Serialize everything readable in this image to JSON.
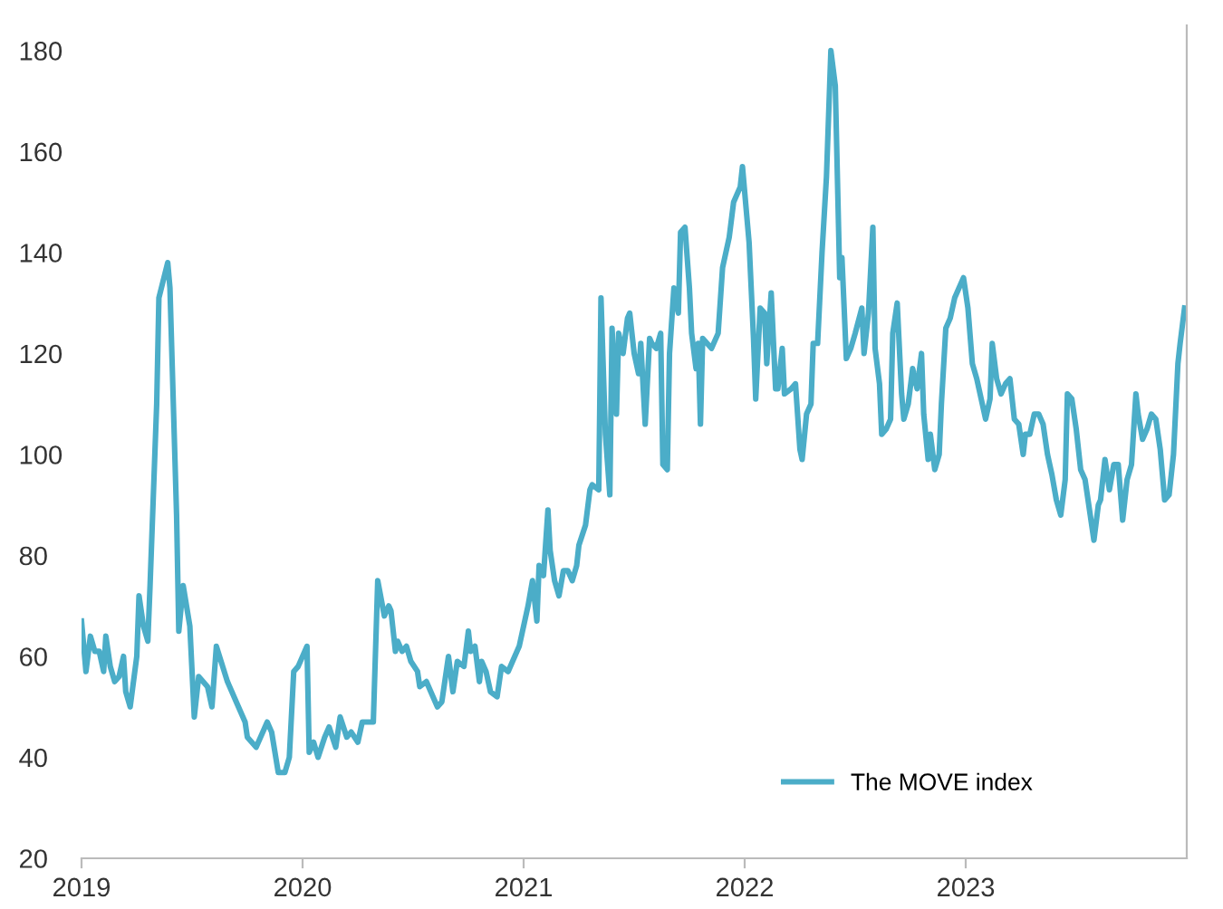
{
  "chart_data": {
    "type": "line",
    "xlim": [
      2019,
      2024
    ],
    "xticks": [
      2019,
      2020,
      2021,
      2022,
      2023
    ],
    "ylim": [
      20,
      185
    ],
    "yticks": [
      20,
      40,
      60,
      80,
      100,
      120,
      140,
      160,
      180
    ],
    "grid": false,
    "legend": "bottom right",
    "marker": "none",
    "line_style": "solid",
    "series": [
      {
        "name": "The MOVE index",
        "color": "#4badc8",
        "x": [
          2019.0,
          2019.02,
          2019.04,
          2019.06,
          2019.08,
          2019.1,
          2019.11,
          2019.13,
          2019.15,
          2019.17,
          2019.19,
          2019.2,
          2019.22,
          2019.25,
          2019.26,
          2019.28,
          2019.3,
          2019.31,
          2019.34,
          2019.35,
          2019.39,
          2019.4,
          2019.43,
          2019.44,
          2019.46,
          2019.49,
          2019.51,
          2019.53,
          2019.57,
          2019.59,
          2019.61,
          2019.66,
          2019.7,
          2019.74,
          2019.75,
          2019.79,
          2019.84,
          2019.86,
          2019.89,
          2019.92,
          2019.94,
          2019.96,
          2019.98,
          2020.02,
          2020.03,
          2020.05,
          2020.07,
          2020.1,
          2020.12,
          2020.15,
          2020.17,
          2020.2,
          2020.22,
          2020.25,
          2020.27,
          2020.3,
          2020.32,
          2020.34,
          2020.37,
          2020.39,
          2020.4,
          2020.42,
          2020.43,
          2020.45,
          2020.47,
          2020.49,
          2020.52,
          2020.53,
          2020.56,
          2020.58,
          2020.61,
          2020.63,
          2020.66,
          2020.68,
          2020.7,
          2020.73,
          2020.75,
          2020.76,
          2020.78,
          2020.8,
          2020.81,
          2020.83,
          2020.85,
          2020.88,
          2020.9,
          2020.93,
          2020.95,
          2020.98,
          2021.02,
          2021.04,
          2021.06,
          2021.07,
          2021.09,
          2021.11,
          2021.12,
          2021.14,
          2021.16,
          2021.18,
          2021.2,
          2021.22,
          2021.24,
          2021.25,
          2021.28,
          2021.3,
          2021.31,
          2021.34,
          2021.35,
          2021.37,
          2021.39,
          2021.4,
          2021.42,
          2021.43,
          2021.45,
          2021.47,
          2021.48,
          2021.5,
          2021.52,
          2021.53,
          2021.55,
          2021.57,
          2021.58,
          2021.6,
          2021.62,
          2021.63,
          2021.65,
          2021.66,
          2021.68,
          2021.7,
          2021.71,
          2021.73,
          2021.75,
          2021.76,
          2021.78,
          2021.79,
          2021.8,
          2021.81,
          2021.83,
          2021.85,
          2021.88,
          2021.9,
          2021.93,
          2021.95,
          2021.98,
          2021.99,
          2022.02,
          2022.04,
          2022.05,
          2022.07,
          2022.09,
          2022.1,
          2022.12,
          2022.14,
          2022.15,
          2022.17,
          2022.18,
          2022.21,
          2022.23,
          2022.25,
          2022.26,
          2022.28,
          2022.3,
          2022.31,
          2022.33,
          2022.35,
          2022.37,
          2022.39,
          2022.41,
          2022.43,
          2022.44,
          2022.46,
          2022.48,
          2022.5,
          2022.53,
          2022.54,
          2022.56,
          2022.58,
          2022.59,
          2022.61,
          2022.62,
          2022.64,
          2022.66,
          2022.67,
          2022.69,
          2022.71,
          2022.72,
          2022.74,
          2022.76,
          2022.78,
          2022.8,
          2022.81,
          2022.83,
          2022.84,
          2022.86,
          2022.88,
          2022.89,
          2022.91,
          2022.93,
          2022.95,
          2022.99,
          2023.01,
          2023.03,
          2023.05,
          2023.07,
          2023.09,
          2023.11,
          2023.12,
          2023.14,
          2023.16,
          2023.18,
          2023.2,
          2023.22,
          2023.24,
          2023.26,
          2023.27,
          2023.29,
          2023.31,
          2023.33,
          2023.35,
          2023.37,
          2023.39,
          2023.41,
          2023.43,
          2023.45,
          2023.46,
          2023.48,
          2023.5,
          2023.52,
          2023.54,
          2023.56,
          2023.58,
          2023.6,
          2023.61,
          2023.63,
          2023.65,
          2023.67,
          2023.69,
          2023.71,
          2023.73,
          2023.75,
          2023.77,
          2023.78,
          2023.8,
          2023.82,
          2023.84,
          2023.86,
          2023.88,
          2023.9,
          2023.92,
          2023.94,
          2023.96,
          2023.97,
          2023.99
        ],
        "values": [
          67,
          57,
          64,
          61,
          61,
          57,
          64,
          58,
          55,
          56,
          60,
          53,
          50,
          60,
          72,
          66,
          63,
          74,
          110,
          131,
          138,
          133,
          88,
          65,
          74,
          66,
          48,
          56,
          54,
          50,
          62,
          55,
          51,
          47,
          44,
          42,
          47,
          45,
          37,
          37,
          40,
          57,
          58,
          62,
          41,
          43,
          40,
          44,
          46,
          42,
          48,
          44,
          45,
          43,
          47,
          47,
          47,
          75,
          68,
          70,
          69,
          61,
          63,
          61,
          62,
          59,
          57,
          54,
          55,
          53,
          50,
          51,
          60,
          53,
          59,
          58,
          65,
          61,
          62,
          55,
          59,
          57,
          53,
          52,
          58,
          57,
          59,
          62,
          70,
          75,
          67,
          78,
          76,
          89,
          81,
          75,
          72,
          77,
          77,
          75,
          78,
          82,
          86,
          93,
          94,
          93,
          131,
          104,
          92,
          125,
          108,
          124,
          120,
          127,
          128,
          120,
          116,
          122,
          106,
          123,
          122,
          121,
          124,
          98,
          97,
          120,
          133,
          128,
          144,
          145,
          133,
          124,
          117,
          122,
          106,
          123,
          122,
          121,
          124,
          137,
          143,
          150,
          153,
          157,
          142,
          123,
          111,
          129,
          128,
          118,
          132,
          113,
          113,
          121,
          112,
          113,
          114,
          101,
          99,
          108,
          110,
          122,
          122,
          140,
          155,
          180,
          173,
          135,
          139,
          119,
          121,
          124,
          129,
          120,
          128,
          145,
          121,
          114,
          104,
          105,
          107,
          124,
          130,
          112,
          107,
          110,
          117,
          113,
          120,
          108,
          99,
          104,
          97,
          100,
          110,
          125,
          127,
          131,
          135,
          129,
          118,
          115,
          111,
          107,
          111,
          122,
          115,
          112,
          114,
          115,
          107,
          106,
          100,
          104,
          104,
          108,
          108,
          106,
          100,
          96,
          91,
          88,
          95,
          112,
          111,
          105,
          97,
          95,
          89,
          83,
          90,
          91,
          99,
          93,
          98,
          98,
          87,
          95,
          98,
          112,
          108,
          103,
          105,
          108,
          107,
          101,
          91,
          92,
          100,
          118,
          122,
          129
        ]
      }
    ]
  }
}
